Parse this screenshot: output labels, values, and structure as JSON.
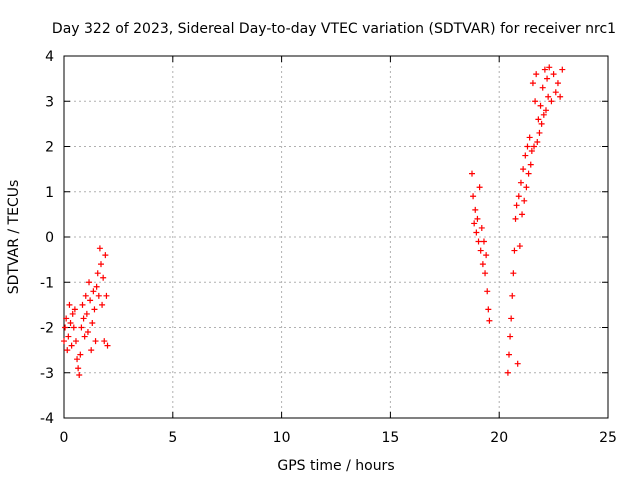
{
  "chart_data": {
    "type": "scatter",
    "title": "Day 322 of 2023, Sidereal Day-to-day VTEC variation (SDTVAR) for receiver nrc1",
    "xlabel": "GPS time / hours",
    "ylabel": "SDTVAR / TECUs",
    "xlim": [
      0,
      25
    ],
    "ylim": [
      -4,
      4
    ],
    "xticks": [
      0,
      5,
      10,
      15,
      20,
      25
    ],
    "yticks": [
      -4,
      -3,
      -2,
      -1,
      0,
      1,
      2,
      3,
      4
    ],
    "grid": true,
    "marker": "+",
    "series": [
      {
        "name": "nrc1",
        "color": "#ff0000",
        "segments": [
          [
            [
              0.0,
              -2.3
            ],
            [
              0.05,
              -2.0
            ],
            [
              0.1,
              -1.8
            ],
            [
              0.15,
              -2.5
            ],
            [
              0.2,
              -2.2
            ],
            [
              0.25,
              -1.5
            ],
            [
              0.3,
              -1.9
            ],
            [
              0.35,
              -2.4
            ],
            [
              0.4,
              -1.7
            ],
            [
              0.45,
              -2.0
            ],
            [
              0.5,
              -1.6
            ],
            [
              0.55,
              -2.3
            ],
            [
              0.6,
              -2.7
            ],
            [
              0.65,
              -2.9
            ],
            [
              0.7,
              -3.05
            ],
            [
              0.75,
              -2.6
            ],
            [
              0.8,
              -2.0
            ],
            [
              0.85,
              -1.5
            ],
            [
              0.9,
              -1.8
            ],
            [
              0.95,
              -2.2
            ],
            [
              1.0,
              -1.3
            ],
            [
              1.05,
              -1.7
            ],
            [
              1.1,
              -2.1
            ],
            [
              1.15,
              -1.0
            ],
            [
              1.2,
              -1.4
            ],
            [
              1.25,
              -2.5
            ],
            [
              1.3,
              -1.9
            ],
            [
              1.35,
              -1.2
            ],
            [
              1.4,
              -1.6
            ],
            [
              1.45,
              -2.3
            ],
            [
              1.5,
              -1.1
            ],
            [
              1.55,
              -0.8
            ],
            [
              1.6,
              -1.3
            ],
            [
              1.65,
              -0.25
            ],
            [
              1.7,
              -0.6
            ],
            [
              1.75,
              -1.5
            ],
            [
              1.8,
              -0.9
            ],
            [
              1.85,
              -2.3
            ],
            [
              1.9,
              -0.4
            ],
            [
              1.95,
              -1.3
            ],
            [
              2.0,
              -2.4
            ]
          ],
          [
            [
              18.75,
              1.4
            ],
            [
              18.8,
              0.9
            ],
            [
              18.85,
              0.3
            ],
            [
              18.9,
              0.6
            ],
            [
              18.95,
              0.1
            ],
            [
              19.0,
              0.4
            ],
            [
              19.05,
              -0.1
            ],
            [
              19.1,
              1.1
            ],
            [
              19.15,
              -0.3
            ],
            [
              19.2,
              0.2
            ],
            [
              19.25,
              -0.6
            ],
            [
              19.3,
              -0.1
            ],
            [
              19.35,
              -0.8
            ],
            [
              19.4,
              -0.4
            ],
            [
              19.45,
              -1.2
            ],
            [
              19.5,
              -1.6
            ],
            [
              19.55,
              -1.85
            ]
          ],
          [
            [
              20.4,
              -3.0
            ],
            [
              20.45,
              -2.6
            ],
            [
              20.5,
              -2.2
            ],
            [
              20.55,
              -1.8
            ],
            [
              20.6,
              -1.3
            ],
            [
              20.65,
              -0.8
            ],
            [
              20.7,
              -0.3
            ],
            [
              20.75,
              0.4
            ],
            [
              20.8,
              0.7
            ],
            [
              20.85,
              -2.8
            ],
            [
              20.9,
              0.9
            ],
            [
              20.95,
              -0.2
            ],
            [
              21.0,
              1.2
            ],
            [
              21.05,
              0.5
            ],
            [
              21.1,
              1.5
            ],
            [
              21.15,
              0.8
            ],
            [
              21.2,
              1.8
            ],
            [
              21.25,
              1.1
            ],
            [
              21.3,
              2.0
            ],
            [
              21.35,
              1.4
            ],
            [
              21.4,
              2.2
            ],
            [
              21.45,
              1.6
            ],
            [
              21.5,
              1.9
            ],
            [
              21.55,
              3.4
            ],
            [
              21.6,
              2.0
            ],
            [
              21.65,
              3.0
            ],
            [
              21.7,
              3.6
            ],
            [
              21.75,
              2.1
            ],
            [
              21.8,
              2.6
            ],
            [
              21.85,
              2.3
            ],
            [
              21.9,
              2.9
            ],
            [
              21.95,
              2.5
            ],
            [
              22.0,
              3.3
            ],
            [
              22.05,
              2.7
            ],
            [
              22.1,
              3.7
            ],
            [
              22.15,
              2.8
            ],
            [
              22.2,
              3.5
            ],
            [
              22.25,
              3.1
            ],
            [
              22.3,
              3.75
            ],
            [
              22.4,
              3.0
            ],
            [
              22.5,
              3.6
            ],
            [
              22.6,
              3.2
            ],
            [
              22.7,
              3.4
            ],
            [
              22.8,
              3.1
            ],
            [
              22.9,
              3.7
            ]
          ]
        ]
      }
    ]
  }
}
